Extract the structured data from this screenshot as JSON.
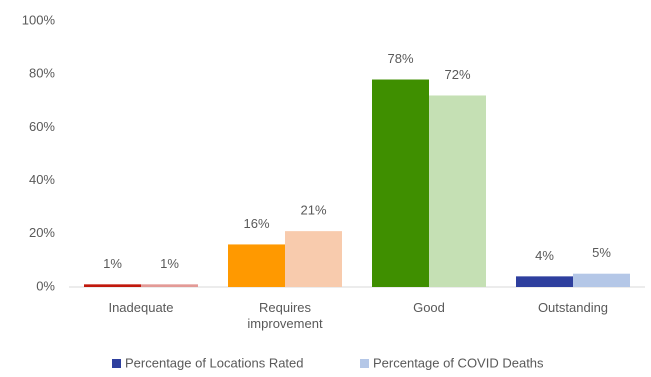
{
  "chart_data": {
    "type": "bar",
    "categories": [
      "Inadequate",
      "Requires improvement",
      "Good",
      "Outstanding"
    ],
    "series": [
      {
        "name": "Percentage of Locations Rated",
        "color": "#2e3f9e",
        "colors": [
          "#c0180c",
          "#ff9900",
          "#3f8f00",
          "#2e3f9e"
        ],
        "values": [
          1,
          16,
          78,
          4
        ],
        "value_labels": [
          "1%",
          "16%",
          "78%",
          "4%"
        ]
      },
      {
        "name": "Percentage of COVID Deaths",
        "color": "#b4c7e7",
        "colors": [
          "#e39a96",
          "#f8cbad",
          "#c5e0b4",
          "#b4c7e7"
        ],
        "values": [
          1,
          21,
          72,
          5
        ],
        "value_labels": [
          "1%",
          "21%",
          "72%",
          "5%"
        ]
      }
    ],
    "ylim": [
      0,
      100
    ],
    "yticks": [
      {
        "value": 0,
        "label": "0%"
      },
      {
        "value": 20,
        "label": "20%"
      },
      {
        "value": 40,
        "label": "40%"
      },
      {
        "value": 60,
        "label": "60%"
      },
      {
        "value": 80,
        "label": "80%"
      },
      {
        "value": 100,
        "label": "100%"
      }
    ],
    "grid": false
  }
}
